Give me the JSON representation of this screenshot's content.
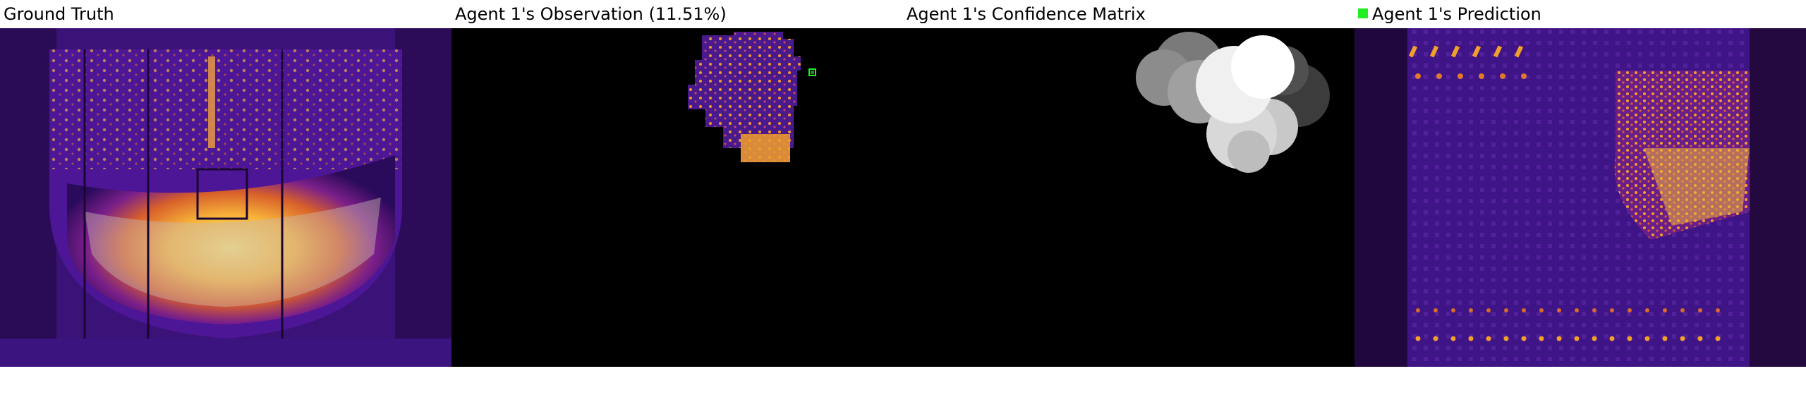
{
  "panels": {
    "ground_truth": {
      "title": "Ground Truth"
    },
    "observation": {
      "title": "Agent 1's Observation (11.51%)"
    },
    "confidence": {
      "title": "Agent 1's Confidence Matrix"
    },
    "prediction": {
      "title": "Agent 1's Prediction",
      "legend_color": "#22ee22"
    }
  },
  "colors": {
    "background": "#000000",
    "heat_dark": "#1a0433",
    "heat_purple": "#4a1a8c",
    "heat_magenta": "#b0308a",
    "heat_orange": "#f28a1a",
    "heat_yellow": "#f8d23a",
    "agent_marker": "#22ee22"
  }
}
